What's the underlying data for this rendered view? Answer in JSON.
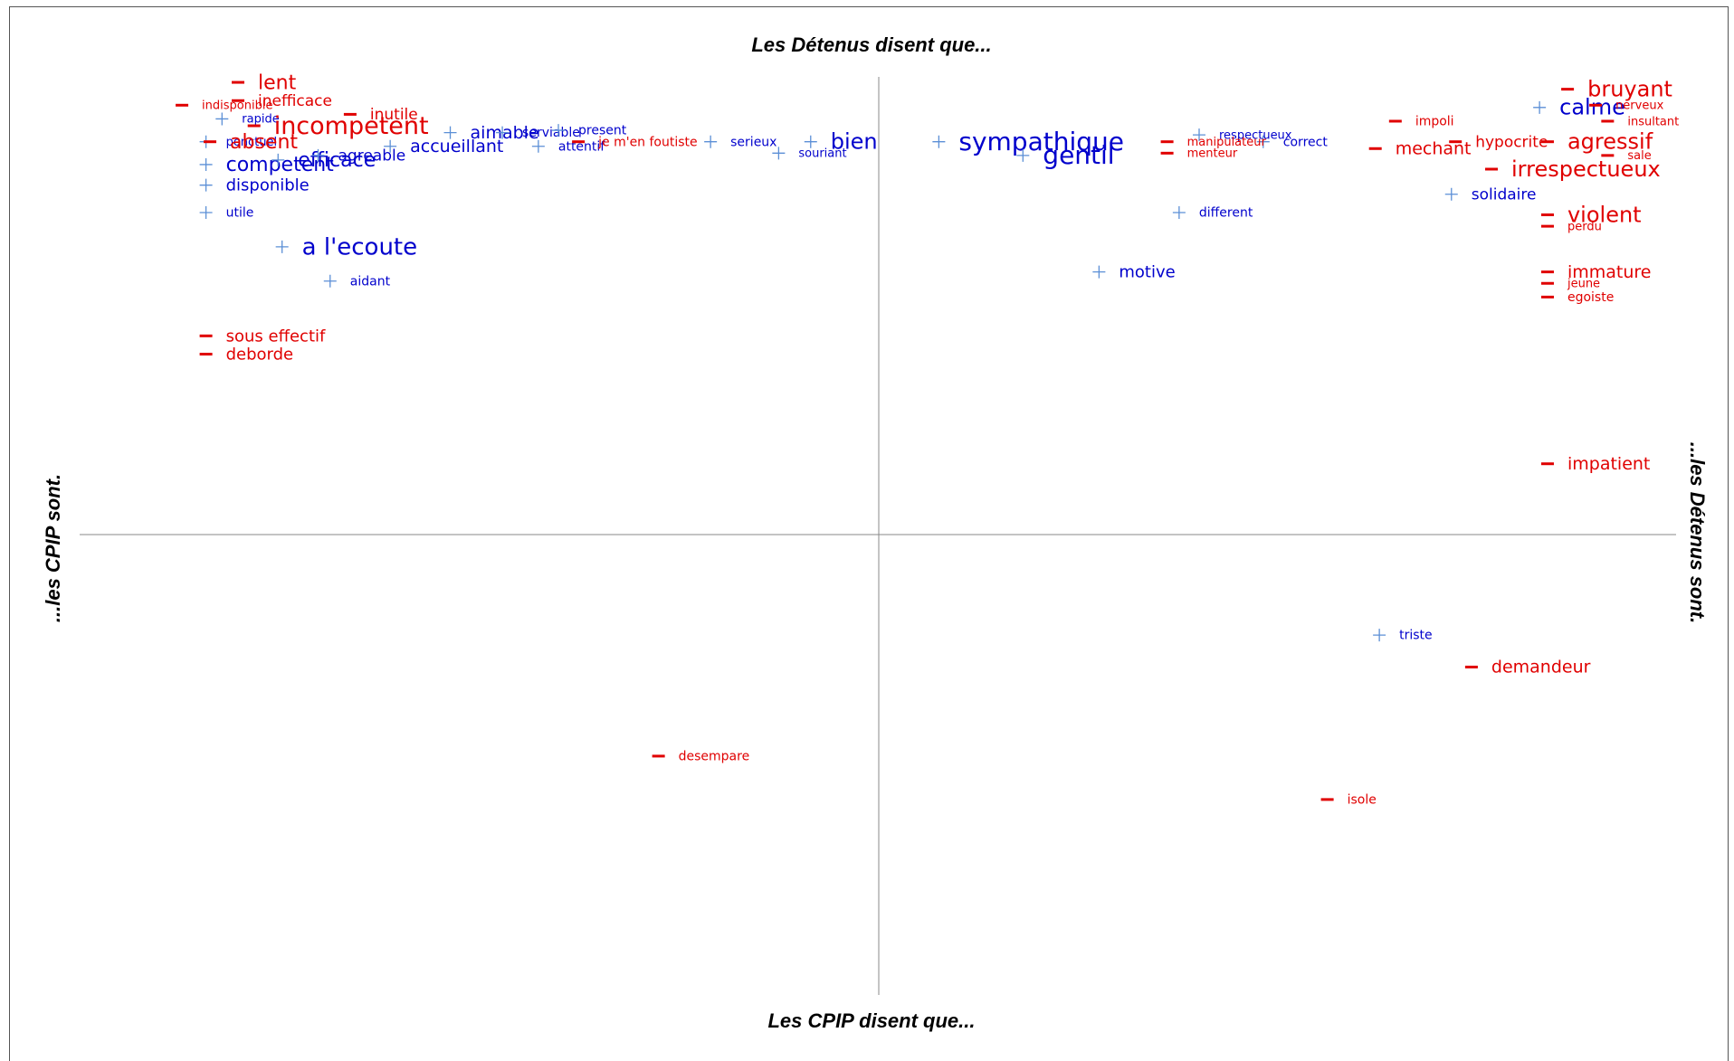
{
  "chart_data": {
    "type": "scatter",
    "titles": {
      "top": "Les Détenus disent que...",
      "bottom": "Les CPIP disent que...",
      "left": "...les CPIP sont.",
      "right": "...les Détenus sont."
    },
    "xlim": [
      -1,
      1
    ],
    "ylim": [
      -1,
      1
    ],
    "grid": false,
    "colors": {
      "positive": "#0000cc",
      "negative": "#e00000",
      "marker_pos": "#5b8fd6",
      "marker_neg": "#e00000",
      "axis": "#888888"
    },
    "series": [
      {
        "name": "+",
        "points": [
          {
            "label": "competent",
            "x": -0.84,
            "y": 0.81,
            "s": 22
          },
          {
            "label": "efficace",
            "x": -0.75,
            "y": 0.82,
            "s": 22
          },
          {
            "label": "ponctuel",
            "x": -0.84,
            "y": 0.86,
            "s": 13
          },
          {
            "label": "rapide",
            "x": -0.82,
            "y": 0.91,
            "s": 13
          },
          {
            "label": "disponible",
            "x": -0.84,
            "y": 0.765,
            "s": 18
          },
          {
            "label": "utile",
            "x": -0.84,
            "y": 0.705,
            "s": 14
          },
          {
            "label": "a l'ecoute",
            "x": -0.745,
            "y": 0.63,
            "s": 26
          },
          {
            "label": "aidant",
            "x": -0.685,
            "y": 0.555,
            "s": 14
          },
          {
            "label": "agreable",
            "x": -0.7,
            "y": 0.83,
            "s": 17
          },
          {
            "label": "accueillant",
            "x": -0.61,
            "y": 0.85,
            "s": 19
          },
          {
            "label": "aimable",
            "x": -0.535,
            "y": 0.88,
            "s": 19
          },
          {
            "label": "serviable",
            "x": -0.47,
            "y": 0.88,
            "s": 14
          },
          {
            "label": "attentif",
            "x": -0.425,
            "y": 0.85,
            "s": 14
          },
          {
            "label": "present",
            "x": -0.4,
            "y": 0.885,
            "s": 14
          },
          {
            "label": "serieux",
            "x": -0.21,
            "y": 0.86,
            "s": 14
          },
          {
            "label": "bien",
            "x": -0.085,
            "y": 0.86,
            "s": 24
          },
          {
            "label": "souriant",
            "x": -0.125,
            "y": 0.835,
            "s": 13
          },
          {
            "label": "sympathique",
            "x": 0.075,
            "y": 0.86,
            "s": 28
          },
          {
            "label": "gentil",
            "x": 0.18,
            "y": 0.83,
            "s": 28
          },
          {
            "label": "respectueux",
            "x": 0.4,
            "y": 0.875,
            "s": 13
          },
          {
            "label": "correct",
            "x": 0.48,
            "y": 0.86,
            "s": 14
          },
          {
            "label": "different",
            "x": 0.375,
            "y": 0.705,
            "s": 14
          },
          {
            "label": "motive",
            "x": 0.275,
            "y": 0.575,
            "s": 18
          },
          {
            "label": "calme",
            "x": 0.825,
            "y": 0.935,
            "s": 24
          },
          {
            "label": "solidaire",
            "x": 0.715,
            "y": 0.745,
            "s": 17
          },
          {
            "label": "triste",
            "x": 0.625,
            "y": -0.22,
            "s": 14
          }
        ]
      },
      {
        "name": "-",
        "points": [
          {
            "label": "lent",
            "x": -0.8,
            "y": 0.99,
            "s": 22
          },
          {
            "label": "inefficace",
            "x": -0.8,
            "y": 0.95,
            "s": 17
          },
          {
            "label": "indisponible",
            "x": -0.87,
            "y": 0.94,
            "s": 13
          },
          {
            "label": "incompetent",
            "x": -0.78,
            "y": 0.895,
            "s": 27
          },
          {
            "label": "inutile",
            "x": -0.66,
            "y": 0.92,
            "s": 17
          },
          {
            "label": "absent",
            "x": -0.835,
            "y": 0.86,
            "s": 22
          },
          {
            "label": "je m'en foutiste",
            "x": -0.375,
            "y": 0.86,
            "s": 14
          },
          {
            "label": "sous effectif",
            "x": -0.84,
            "y": 0.435,
            "s": 18
          },
          {
            "label": "deborde",
            "x": -0.84,
            "y": 0.395,
            "s": 18
          },
          {
            "label": "manipulateur",
            "x": 0.36,
            "y": 0.86,
            "s": 13
          },
          {
            "label": "menteur",
            "x": 0.36,
            "y": 0.835,
            "s": 13
          },
          {
            "label": "impoli",
            "x": 0.645,
            "y": 0.905,
            "s": 14
          },
          {
            "label": "mechant",
            "x": 0.62,
            "y": 0.845,
            "s": 19
          },
          {
            "label": "hypocrite",
            "x": 0.72,
            "y": 0.86,
            "s": 17
          },
          {
            "label": "bruyant",
            "x": 0.86,
            "y": 0.975,
            "s": 24
          },
          {
            "label": "nerveux",
            "x": 0.895,
            "y": 0.94,
            "s": 13
          },
          {
            "label": "insultant",
            "x": 0.91,
            "y": 0.905,
            "s": 13
          },
          {
            "label": "agressif",
            "x": 0.835,
            "y": 0.86,
            "s": 24
          },
          {
            "label": "sale",
            "x": 0.91,
            "y": 0.83,
            "s": 13
          },
          {
            "label": "irrespectueux",
            "x": 0.765,
            "y": 0.8,
            "s": 24
          },
          {
            "label": "violent",
            "x": 0.835,
            "y": 0.7,
            "s": 24
          },
          {
            "label": "perdu",
            "x": 0.835,
            "y": 0.675,
            "s": 13
          },
          {
            "label": "immature",
            "x": 0.835,
            "y": 0.575,
            "s": 19
          },
          {
            "label": "jeune",
            "x": 0.835,
            "y": 0.55,
            "s": 13
          },
          {
            "label": "egoiste",
            "x": 0.835,
            "y": 0.52,
            "s": 14
          },
          {
            "label": "impatient",
            "x": 0.835,
            "y": 0.155,
            "s": 19
          },
          {
            "label": "demandeur",
            "x": 0.74,
            "y": -0.29,
            "s": 19
          },
          {
            "label": "desempare",
            "x": -0.275,
            "y": -0.485,
            "s": 14
          },
          {
            "label": "isole",
            "x": 0.56,
            "y": -0.58,
            "s": 14
          }
        ]
      }
    ]
  }
}
